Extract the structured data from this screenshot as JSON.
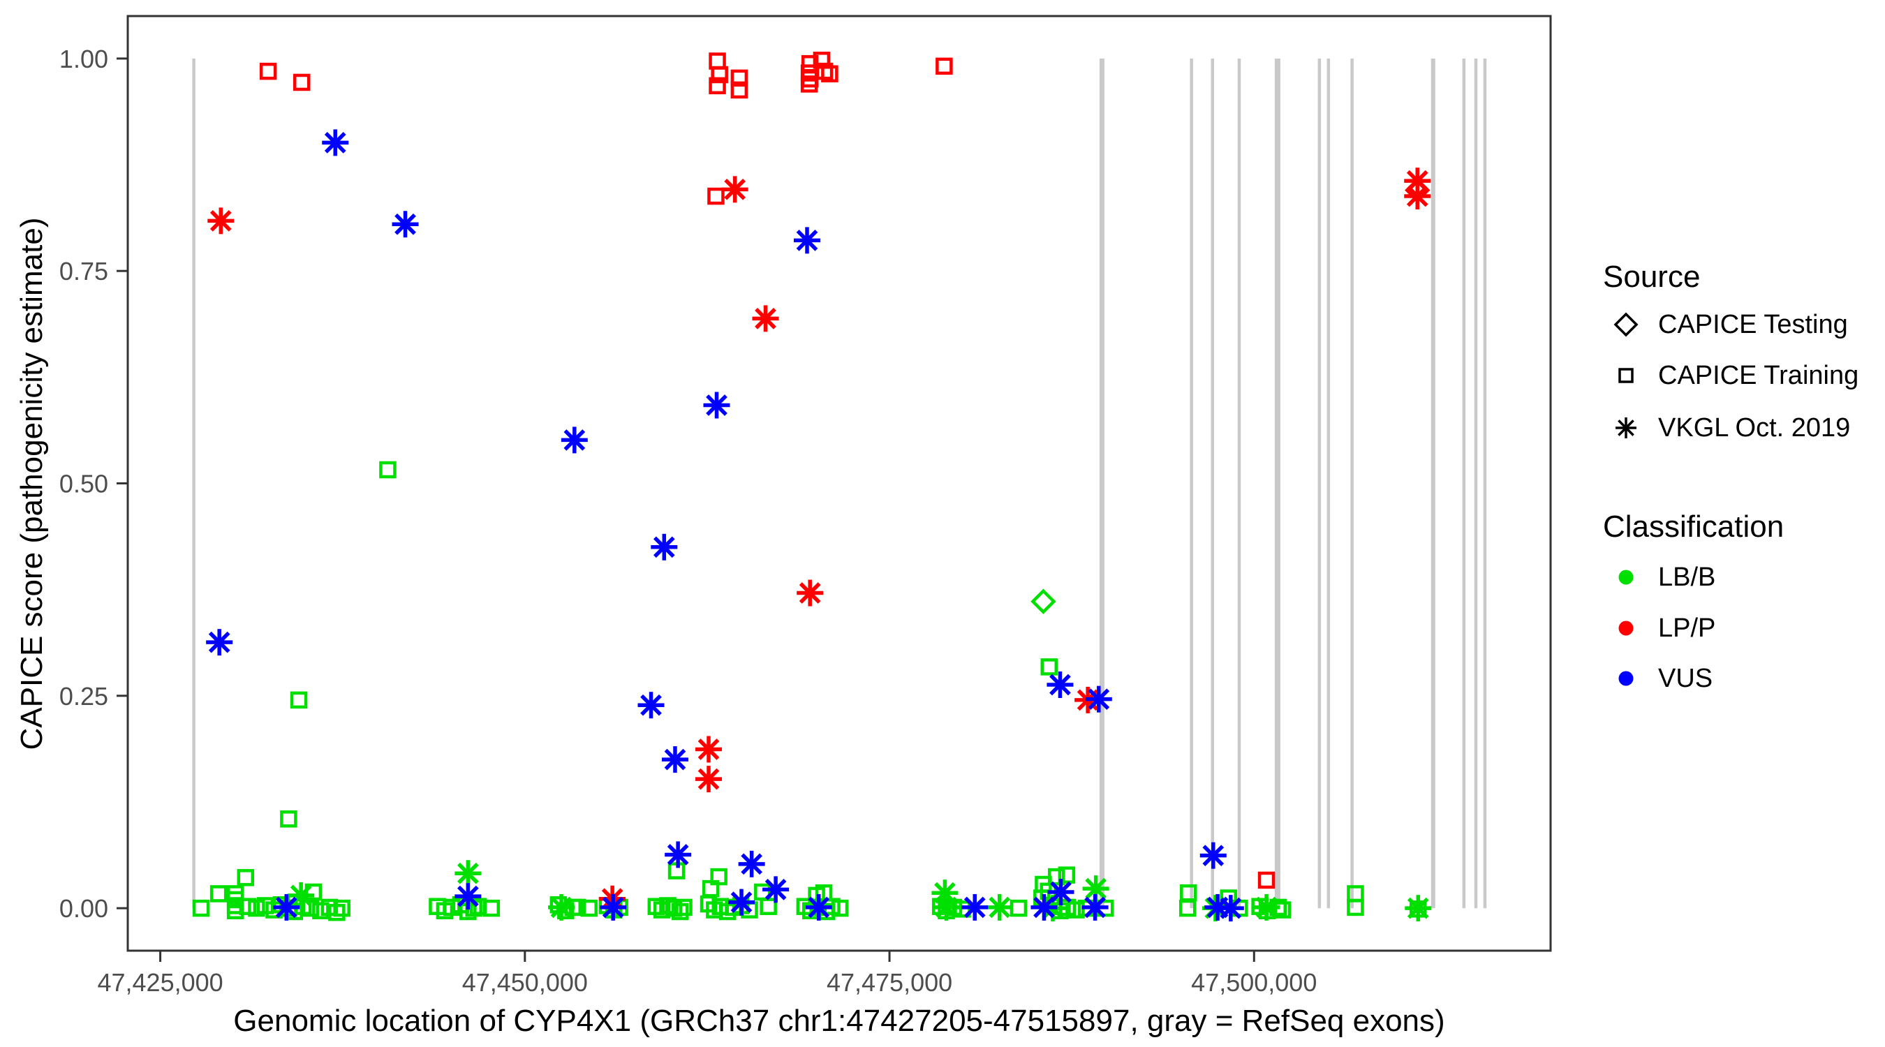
{
  "colors": {
    "lbb": "#00e000",
    "lpp": "#ff0000",
    "vus": "#0000ff",
    "exon_gray": "#c9c9c9",
    "panel_border": "#333333",
    "tick_text": "#4d4d4d",
    "legend_glyph": "#000000"
  },
  "legend": {
    "source": {
      "title": "Source",
      "items": [
        {
          "label": "CAPICE Testing",
          "shape": "diamond"
        },
        {
          "label": "CAPICE Training",
          "shape": "square"
        },
        {
          "label": "VKGL Oct. 2019",
          "shape": "asterisk"
        }
      ]
    },
    "classification": {
      "title": "Classification",
      "items": [
        {
          "label": "LB/B",
          "color_key": "lbb"
        },
        {
          "label": "LP/P",
          "color_key": "lpp"
        },
        {
          "label": "VUS",
          "color_key": "vus"
        }
      ]
    }
  },
  "chart_data": {
    "type": "scatter",
    "title": "",
    "xlabel": "Genomic location of CYP4X1 (GRCh37 chr1:47427205-47515897, gray = RefSeq exons)",
    "ylabel": "CAPICE score (pathogenicity estimate)",
    "x_domain": [
      47422770,
      47520332
    ],
    "y_domain": [
      -0.05,
      1.05
    ],
    "grid": false,
    "legend_position": "right",
    "x_ticks": [
      {
        "value": 47425000,
        "label": "47,425,000"
      },
      {
        "value": 47450000,
        "label": "47,450,000"
      },
      {
        "value": 47475000,
        "label": "47,475,000"
      },
      {
        "value": 47500000,
        "label": "47,500,000"
      }
    ],
    "y_ticks": [
      {
        "value": 0.0,
        "label": "0.00"
      },
      {
        "value": 0.25,
        "label": "0.25"
      },
      {
        "value": 0.5,
        "label": "0.50"
      },
      {
        "value": 0.75,
        "label": "0.75"
      },
      {
        "value": 1.0,
        "label": "1.00"
      }
    ],
    "exons_note": "gray vertical bars = RefSeq exons, drawn from score 0 to 1",
    "exons": [
      {
        "pos": 47427300,
        "width_bp": 215
      },
      {
        "pos": 47489570,
        "width_bp": 335
      },
      {
        "pos": 47495710,
        "width_bp": 215
      },
      {
        "pos": 47497150,
        "width_bp": 215
      },
      {
        "pos": 47498980,
        "width_bp": 215
      },
      {
        "pos": 47501610,
        "width_bp": 383
      },
      {
        "pos": 47504480,
        "width_bp": 215
      },
      {
        "pos": 47505100,
        "width_bp": 215
      },
      {
        "pos": 47506720,
        "width_bp": 215
      },
      {
        "pos": 47512280,
        "width_bp": 287
      },
      {
        "pos": 47514390,
        "width_bp": 215
      },
      {
        "pos": 47515210,
        "width_bp": 215
      },
      {
        "pos": 47515830,
        "width_bp": 215
      }
    ],
    "series": [
      {
        "name": "CAPICE Training LB/B",
        "source": "CAPICE Training",
        "classification": "LB/B",
        "shape": "square",
        "color_key": "lbb",
        "points": [
          [
            47440600,
            0.516
          ],
          [
            47485950,
            0.284
          ],
          [
            47434500,
            0.245
          ],
          [
            47433800,
            0.105
          ],
          [
            47460400,
            0.044
          ],
          [
            47487150,
            0.039
          ],
          [
            47486450,
            0.037
          ],
          [
            47463300,
            0.037
          ],
          [
            47430850,
            0.036
          ],
          [
            47485550,
            0.028
          ],
          [
            47462750,
            0.023
          ],
          [
            47485900,
            0.02
          ],
          [
            47435500,
            0.019
          ],
          [
            47466300,
            0.019
          ],
          [
            47470500,
            0.018
          ],
          [
            47495500,
            0.018
          ],
          [
            47429000,
            0.017
          ],
          [
            47430150,
            0.017
          ],
          [
            47506950,
            0.017
          ],
          [
            47470000,
            0.015
          ],
          [
            47485450,
            0.012
          ],
          [
            47498250,
            0.012
          ],
          [
            47430150,
            0.01
          ],
          [
            47430150,
            0.003
          ],
          [
            47430150,
            -0.003
          ],
          [
            47427800,
            0.0
          ],
          [
            47431000,
            0.002
          ],
          [
            47431600,
            0.0
          ],
          [
            47432200,
            0.003
          ],
          [
            47432800,
            -0.002
          ],
          [
            47433300,
            0.004
          ],
          [
            47433800,
            0.0
          ],
          [
            47434200,
            -0.004
          ],
          [
            47434800,
            0.002
          ],
          [
            47435300,
            0.0
          ],
          [
            47436000,
            -0.003
          ],
          [
            47436600,
            0.001
          ],
          [
            47437100,
            -0.005
          ],
          [
            47437450,
            0.0
          ],
          [
            47444000,
            0.002
          ],
          [
            47444500,
            -0.003
          ],
          [
            47445000,
            0.001
          ],
          [
            47445600,
            0.004
          ],
          [
            47446100,
            -0.004
          ],
          [
            47446500,
            0.0
          ],
          [
            47446800,
            0.002
          ],
          [
            47447700,
            0.0
          ],
          [
            47452300,
            0.004
          ],
          [
            47452800,
            -0.003
          ],
          [
            47453300,
            0.001
          ],
          [
            47453600,
            0.001
          ],
          [
            47454400,
            0.0
          ],
          [
            47455650,
            0.003
          ],
          [
            47456100,
            -0.002
          ],
          [
            47456500,
            0.001
          ],
          [
            47459000,
            0.002
          ],
          [
            47459400,
            -0.002
          ],
          [
            47459800,
            0.003
          ],
          [
            47460200,
            0.0
          ],
          [
            47460650,
            -0.004
          ],
          [
            47460900,
            0.001
          ],
          [
            47462600,
            0.005
          ],
          [
            47463000,
            -0.002
          ],
          [
            47463400,
            0.002
          ],
          [
            47463900,
            -0.004
          ],
          [
            47464300,
            0.001
          ],
          [
            47464800,
            0.003
          ],
          [
            47465400,
            -0.002
          ],
          [
            47466700,
            0.002
          ],
          [
            47469200,
            0.002
          ],
          [
            47469600,
            -0.003
          ],
          [
            47470100,
            0.001
          ],
          [
            47470700,
            -0.004
          ],
          [
            47471050,
            0.002
          ],
          [
            47471600,
            0.0
          ],
          [
            47478500,
            0.002
          ],
          [
            47478900,
            -0.003
          ],
          [
            47479400,
            0.001
          ],
          [
            47480000,
            -0.001
          ],
          [
            47483850,
            0.0
          ],
          [
            47486270,
            0.002
          ],
          [
            47486700,
            -0.003
          ],
          [
            47487200,
            0.001
          ],
          [
            47487800,
            -0.002
          ],
          [
            47488500,
            0.0
          ],
          [
            47489800,
            0.0
          ],
          [
            47495450,
            0.0
          ],
          [
            47499000,
            0.0
          ],
          [
            47500400,
            0.002
          ],
          [
            47500900,
            -0.003
          ],
          [
            47501650,
            0.001
          ],
          [
            47501950,
            -0.002
          ],
          [
            47506950,
            0.001
          ],
          [
            47511250,
            -0.001
          ]
        ]
      },
      {
        "name": "CAPICE Training LP/P",
        "source": "CAPICE Training",
        "classification": "LP/P",
        "shape": "square",
        "color_key": "lpp",
        "points": [
          [
            47463200,
            0.997
          ],
          [
            47432400,
            0.985
          ],
          [
            47463350,
            0.981
          ],
          [
            47464700,
            0.977
          ],
          [
            47434700,
            0.972
          ],
          [
            47463200,
            0.968
          ],
          [
            47464700,
            0.963
          ],
          [
            47470350,
            0.998
          ],
          [
            47469550,
            0.994
          ],
          [
            47470550,
            0.985
          ],
          [
            47469500,
            0.983
          ],
          [
            47470900,
            0.982
          ],
          [
            47469550,
            0.976
          ],
          [
            47469500,
            0.97
          ],
          [
            47478750,
            0.991
          ],
          [
            47463100,
            0.838
          ],
          [
            47500850,
            0.033
          ]
        ]
      },
      {
        "name": "CAPICE Testing LB/B",
        "source": "CAPICE Testing",
        "classification": "LB/B",
        "shape": "diamond",
        "color_key": "lbb",
        "points": [
          [
            47485550,
            0.361
          ]
        ]
      },
      {
        "name": "CAPICE Testing LP/P",
        "source": "CAPICE Testing",
        "classification": "LP/P",
        "shape": "diamond",
        "color_key": "lpp",
        "points": [
          [
            47511200,
            0.845
          ]
        ]
      },
      {
        "name": "VKGL Oct. 2019 LB/B",
        "source": "VKGL Oct. 2019",
        "classification": "LB/B",
        "shape": "asterisk",
        "color_key": "lbb",
        "points": [
          [
            47446100,
            0.041
          ],
          [
            47489150,
            0.023
          ],
          [
            47478800,
            0.018
          ],
          [
            47434650,
            0.015
          ],
          [
            47452500,
            0.001
          ],
          [
            47478900,
            0.001
          ],
          [
            47482550,
            0.001
          ],
          [
            47486200,
            0.0
          ],
          [
            47497350,
            0.0
          ],
          [
            47500850,
            0.001
          ],
          [
            47511250,
            0.0
          ]
        ]
      },
      {
        "name": "VKGL Oct. 2019 LP/P",
        "source": "VKGL Oct. 2019",
        "classification": "LP/P",
        "shape": "asterisk",
        "color_key": "lpp",
        "points": [
          [
            47511200,
            0.856
          ],
          [
            47464400,
            0.846
          ],
          [
            47511200,
            0.838
          ],
          [
            47429150,
            0.809
          ],
          [
            47466500,
            0.694
          ],
          [
            47469550,
            0.371
          ],
          [
            47488600,
            0.245
          ],
          [
            47462600,
            0.187
          ],
          [
            47462600,
            0.152
          ],
          [
            47456000,
            0.011
          ]
        ]
      },
      {
        "name": "VKGL Oct. 2019 VUS",
        "source": "VKGL Oct. 2019",
        "classification": "VUS",
        "shape": "asterisk",
        "color_key": "vus",
        "points": [
          [
            47437000,
            0.901
          ],
          [
            47441800,
            0.805
          ],
          [
            47469350,
            0.786
          ],
          [
            47463150,
            0.592
          ],
          [
            47453400,
            0.551
          ],
          [
            47459550,
            0.425
          ],
          [
            47429050,
            0.313
          ],
          [
            47486700,
            0.263
          ],
          [
            47489350,
            0.246
          ],
          [
            47458650,
            0.239
          ],
          [
            47460300,
            0.175
          ],
          [
            47460500,
            0.063
          ],
          [
            47497200,
            0.062
          ],
          [
            47465550,
            0.052
          ],
          [
            47467200,
            0.022
          ],
          [
            47486750,
            0.019
          ],
          [
            47446100,
            0.014
          ],
          [
            47464850,
            0.007
          ],
          [
            47433650,
            0.001
          ],
          [
            47456050,
            0.001
          ],
          [
            47470150,
            0.001
          ],
          [
            47480850,
            0.001
          ],
          [
            47485600,
            0.001
          ],
          [
            47489100,
            0.001
          ],
          [
            47497500,
            0.001
          ],
          [
            47498400,
            0.0
          ]
        ]
      }
    ]
  }
}
